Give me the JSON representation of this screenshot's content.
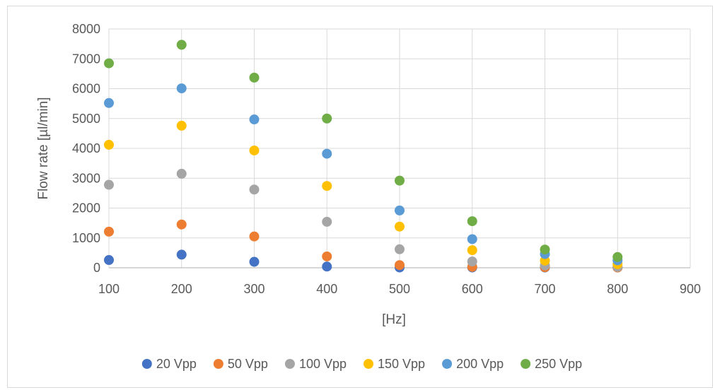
{
  "chart_data": {
    "type": "scatter",
    "title": "",
    "xlabel": "[Hz]",
    "ylabel": "Flow rate [µl/min]",
    "xlim": [
      100,
      900
    ],
    "ylim": [
      0,
      8000
    ],
    "xticks": [
      100,
      200,
      300,
      400,
      500,
      600,
      700,
      800,
      900
    ],
    "yticks": [
      0,
      1000,
      2000,
      3000,
      4000,
      5000,
      6000,
      7000,
      8000
    ],
    "x_tick_labels": [
      "100",
      "200",
      "300",
      "400",
      "500",
      "600",
      "700",
      "800",
      "900"
    ],
    "y_tick_labels": [
      "0",
      "1000",
      "2000",
      "3000",
      "4000",
      "5000",
      "6000",
      "7000",
      "8000"
    ],
    "grid": true,
    "legend_position": "bottom",
    "series": [
      {
        "name": "20 Vpp",
        "color": "#4472c4",
        "x": [
          100,
          200,
          300,
          400,
          500,
          600,
          700,
          800
        ],
        "y": [
          260,
          440,
          200,
          40,
          10,
          10,
          10,
          10
        ]
      },
      {
        "name": "50 Vpp",
        "color": "#ed7d31",
        "x": [
          100,
          200,
          300,
          400,
          500,
          600,
          700,
          800
        ],
        "y": [
          1210,
          1450,
          1050,
          380,
          90,
          30,
          20,
          10
        ]
      },
      {
        "name": "100 Vpp",
        "color": "#a5a5a5",
        "x": [
          100,
          200,
          300,
          400,
          500,
          600,
          700,
          800
        ],
        "y": [
          2780,
          3150,
          2620,
          1540,
          620,
          210,
          80,
          30
        ]
      },
      {
        "name": "150 Vpp",
        "color": "#ffc000",
        "x": [
          100,
          200,
          300,
          400,
          500,
          600,
          700,
          800
        ],
        "y": [
          4120,
          4760,
          3930,
          2740,
          1380,
          590,
          240,
          120
        ]
      },
      {
        "name": "200 Vpp",
        "color": "#5b9bd5",
        "x": [
          100,
          200,
          300,
          400,
          500,
          600,
          700,
          800
        ],
        "y": [
          5520,
          6010,
          4970,
          3820,
          1920,
          960,
          460,
          250
        ]
      },
      {
        "name": "250 Vpp",
        "color": "#70ad47",
        "x": [
          100,
          200,
          300,
          400,
          500,
          600,
          700,
          800
        ],
        "y": [
          6850,
          7470,
          6370,
          5000,
          2920,
          1560,
          610,
          360
        ]
      }
    ]
  }
}
